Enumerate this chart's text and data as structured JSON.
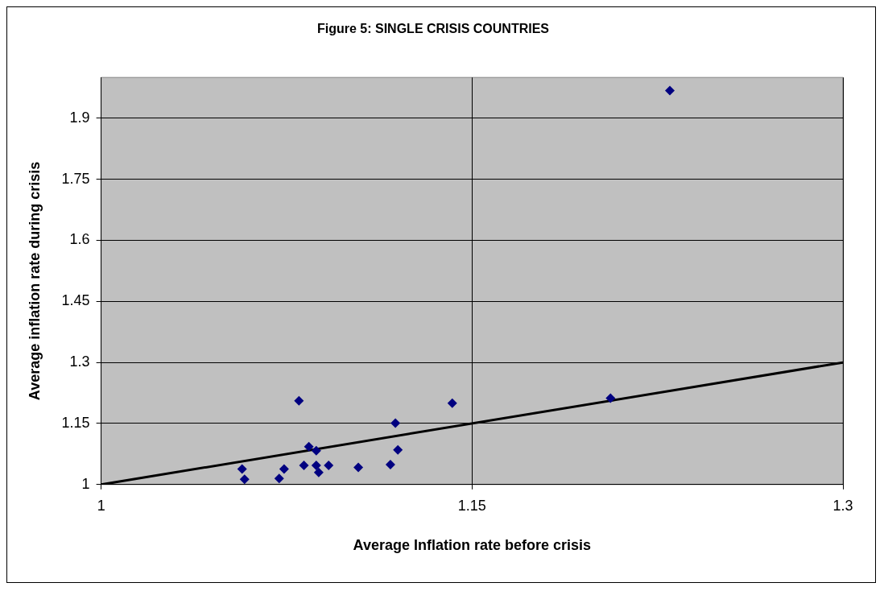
{
  "chart_data": {
    "type": "scatter",
    "title": "Figure 5: SINGLE CRISIS COUNTRIES",
    "xlabel": "Average Inflation rate before crisis",
    "ylabel": "Average inflation rate during crisis",
    "series": [
      {
        "color": "#000080",
        "marker": "diamond",
        "x": [
          1.057,
          1.058,
          1.072,
          1.074,
          1.08,
          1.082,
          1.084,
          1.087,
          1.087,
          1.088,
          1.092,
          1.104,
          1.117,
          1.119,
          1.12,
          1.142,
          1.206,
          1.23
        ],
        "values": [
          1.038,
          1.013,
          1.015,
          1.038,
          1.206,
          1.047,
          1.093,
          1.083,
          1.047,
          1.03,
          1.047,
          1.042,
          1.049,
          1.151,
          1.085,
          1.2,
          1.212,
          1.968
        ]
      },
      {
        "type": "line",
        "color": "#000000",
        "marker": "none",
        "x": [
          1,
          1.3
        ],
        "values": [
          1,
          1.3
        ]
      }
    ],
    "xlim": [
      1,
      1.3
    ],
    "xticks": [
      1,
      1.15,
      1.3
    ],
    "ylim": [
      1,
      2
    ],
    "yticks": [
      1,
      1.15,
      1.3,
      1.45,
      1.6,
      1.75,
      1.9
    ],
    "grid": true,
    "legend": false
  }
}
